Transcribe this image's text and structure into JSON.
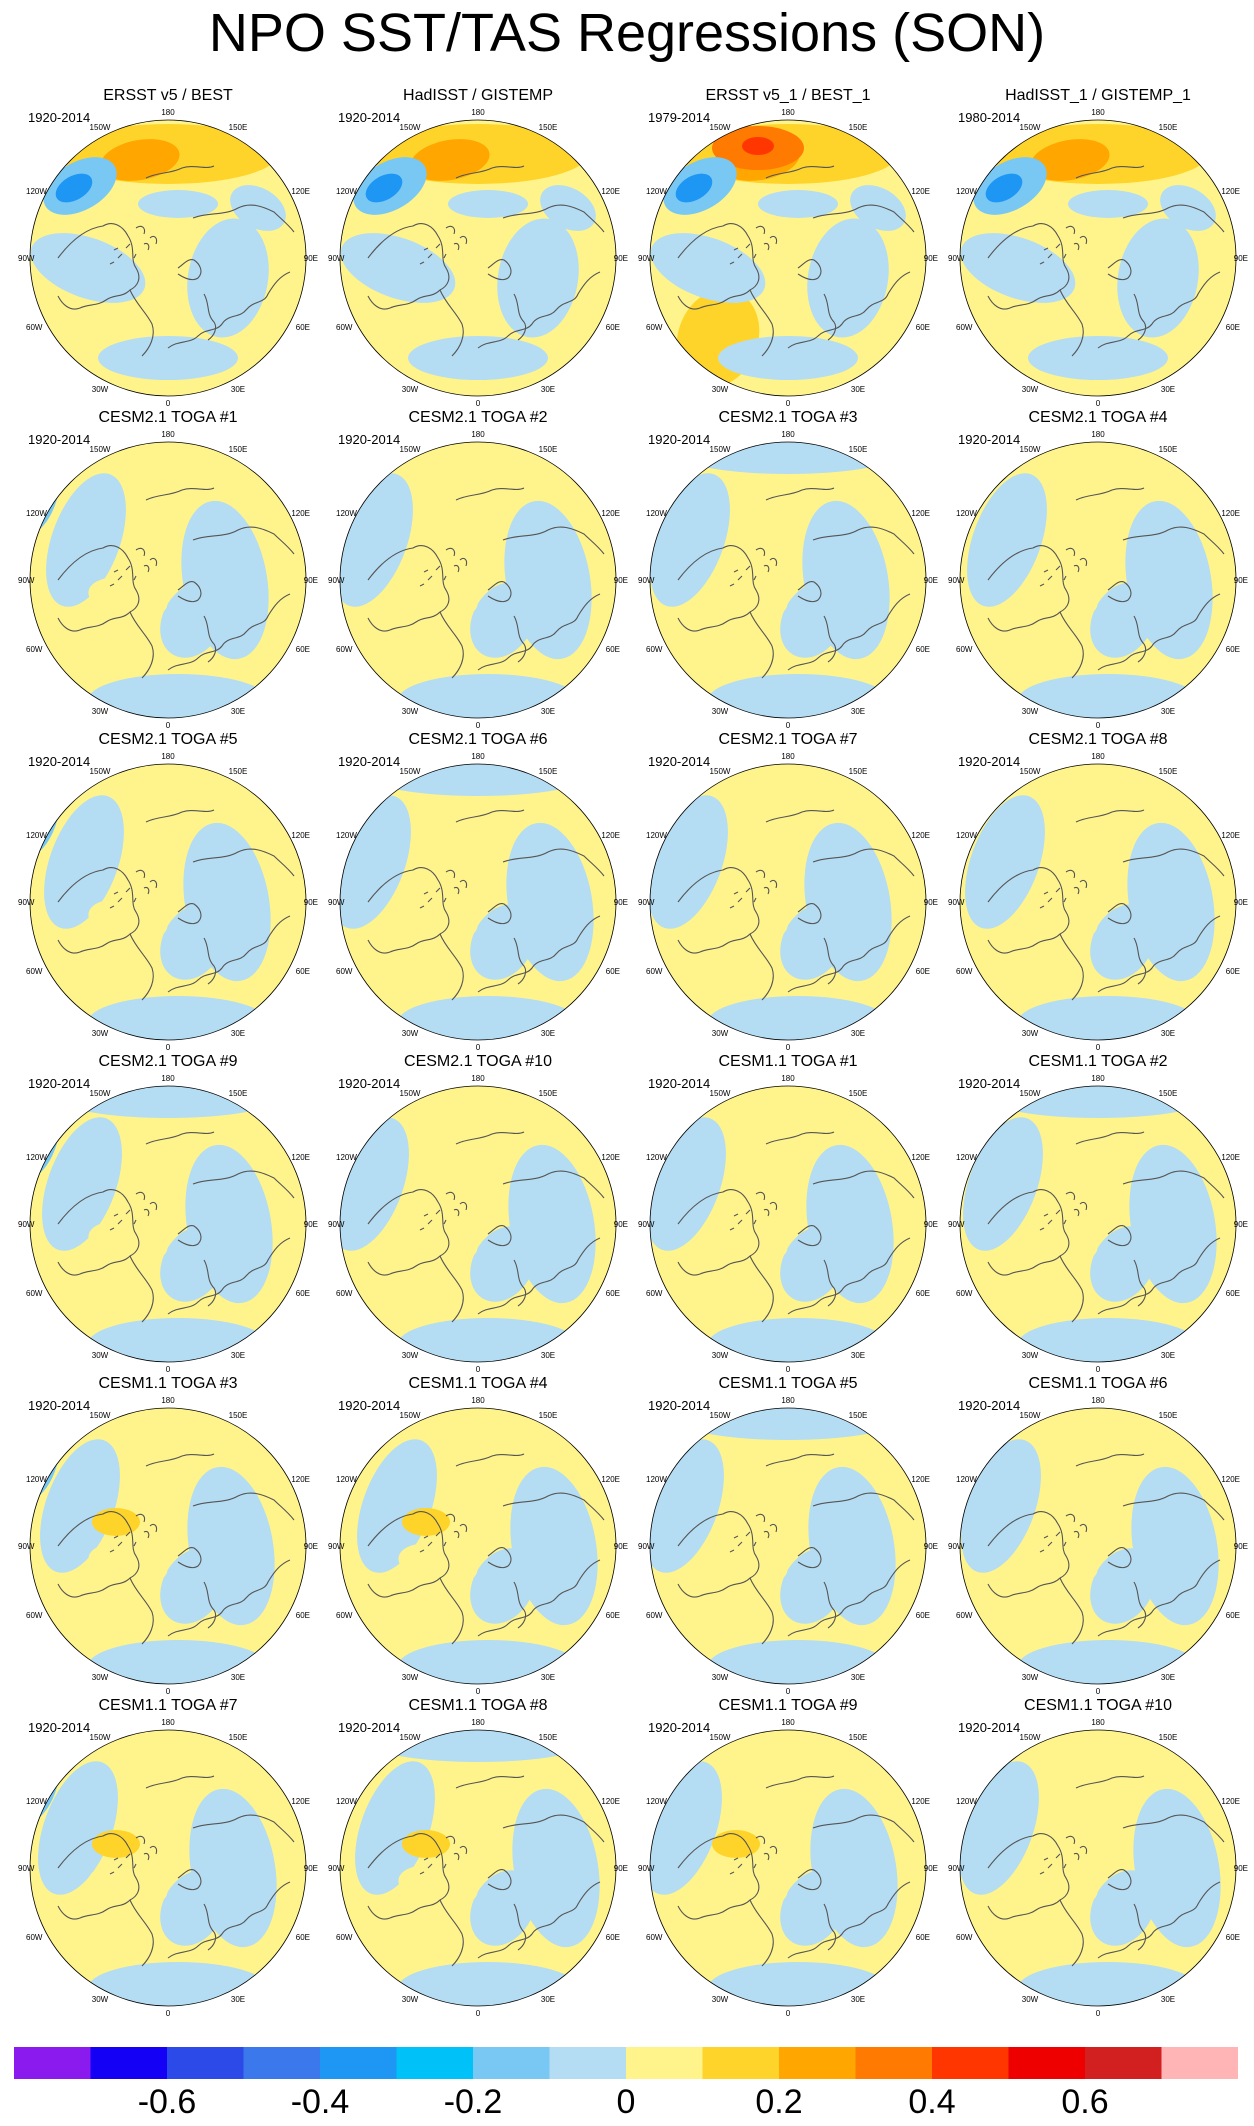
{
  "title": "NPO SST/TAS Regressions (SON)",
  "map_labels": {
    "lon_top": "180",
    "lon_bottom": "0",
    "lon_150w": "150W",
    "lon_150e": "150E",
    "lon_120w": "120W",
    "lon_120e": "120E",
    "lon_90w": "90W",
    "lon_90e": "90E",
    "lon_60w": "60W",
    "lon_60e": "60E",
    "lon_30w": "30W",
    "lon_30e": "30E"
  },
  "panels": [
    {
      "title": "ERSST v5 / BEST",
      "period": "1920-2014",
      "pattern": "obs"
    },
    {
      "title": "HadISST / GISTEMP",
      "period": "1920-2014",
      "pattern": "obs"
    },
    {
      "title": "ERSST v5_1 / BEST_1",
      "period": "1979-2014",
      "pattern": "obs_strong"
    },
    {
      "title": "HadISST_1 / GISTEMP_1",
      "period": "1980-2014",
      "pattern": "obs"
    },
    {
      "title": "CESM2.1 TOGA #1",
      "period": "1920-2014",
      "pattern": "model"
    },
    {
      "title": "CESM2.1 TOGA #2",
      "period": "1920-2014",
      "pattern": "model"
    },
    {
      "title": "CESM2.1 TOGA #3",
      "period": "1920-2014",
      "pattern": "model"
    },
    {
      "title": "CESM2.1 TOGA #4",
      "period": "1920-2014",
      "pattern": "model"
    },
    {
      "title": "CESM2.1 TOGA #5",
      "period": "1920-2014",
      "pattern": "model"
    },
    {
      "title": "CESM2.1 TOGA #6",
      "period": "1920-2014",
      "pattern": "model"
    },
    {
      "title": "CESM2.1 TOGA #7",
      "period": "1920-2014",
      "pattern": "model"
    },
    {
      "title": "CESM2.1 TOGA #8",
      "period": "1920-2014",
      "pattern": "model"
    },
    {
      "title": "CESM2.1 TOGA #9",
      "period": "1920-2014",
      "pattern": "model"
    },
    {
      "title": "CESM2.1 TOGA #10",
      "period": "1920-2014",
      "pattern": "model"
    },
    {
      "title": "CESM1.1 TOGA #1",
      "period": "1920-2014",
      "pattern": "model"
    },
    {
      "title": "CESM1.1 TOGA #2",
      "period": "1920-2014",
      "pattern": "model"
    },
    {
      "title": "CESM1.1 TOGA #3",
      "period": "1920-2014",
      "pattern": "model_warm"
    },
    {
      "title": "CESM1.1 TOGA #4",
      "period": "1920-2014",
      "pattern": "model_warm"
    },
    {
      "title": "CESM1.1 TOGA #5",
      "period": "1920-2014",
      "pattern": "model"
    },
    {
      "title": "CESM1.1 TOGA #6",
      "period": "1920-2014",
      "pattern": "model"
    },
    {
      "title": "CESM1.1 TOGA #7",
      "period": "1920-2014",
      "pattern": "model_warm"
    },
    {
      "title": "CESM1.1 TOGA #8",
      "period": "1920-2014",
      "pattern": "model_warm"
    },
    {
      "title": "CESM1.1 TOGA #9",
      "period": "1920-2014",
      "pattern": "model_warm"
    },
    {
      "title": "CESM1.1 TOGA #10",
      "period": "1920-2014",
      "pattern": "model"
    }
  ],
  "colorbar": {
    "colors": [
      "#8b1aef",
      "#1400f5",
      "#2b4ae8",
      "#3a78ec",
      "#1e96f4",
      "#00c2f8",
      "#79c8f4",
      "#b4dcf2",
      "#fff48c",
      "#ffd42a",
      "#ffa600",
      "#ff7a00",
      "#ff3600",
      "#ee0000",
      "#d21f1f",
      "#ffb5b5"
    ],
    "tick_labels": [
      "-0.6",
      "-0.4",
      "-0.2",
      "0",
      "0.2",
      "0.4",
      "0.6"
    ],
    "tick_values": [
      -0.6,
      -0.4,
      -0.2,
      0,
      0.2,
      0.4,
      0.6
    ],
    "min": -0.8,
    "max": 0.8
  }
}
